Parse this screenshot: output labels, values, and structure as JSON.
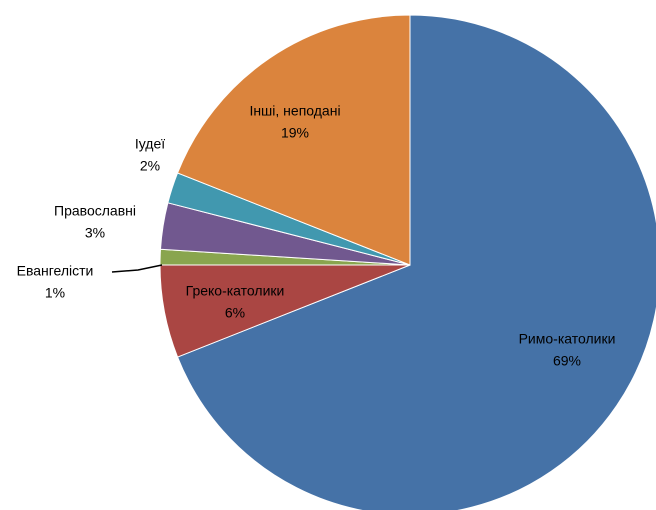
{
  "chart_data": {
    "type": "pie",
    "categories": [
      "Римо-католики",
      "Греко-католики",
      "Евангелісти",
      "Православні",
      "Іудеї",
      "Інші, неподані"
    ],
    "values": [
      69,
      6,
      1,
      3,
      2,
      19
    ],
    "value_labels": [
      "69%",
      "6%",
      "1%",
      "3%",
      "2%",
      "19%"
    ],
    "colors": [
      "#4572a7",
      "#aa4643",
      "#89a54e",
      "#71588f",
      "#4198af",
      "#db843d"
    ]
  }
}
